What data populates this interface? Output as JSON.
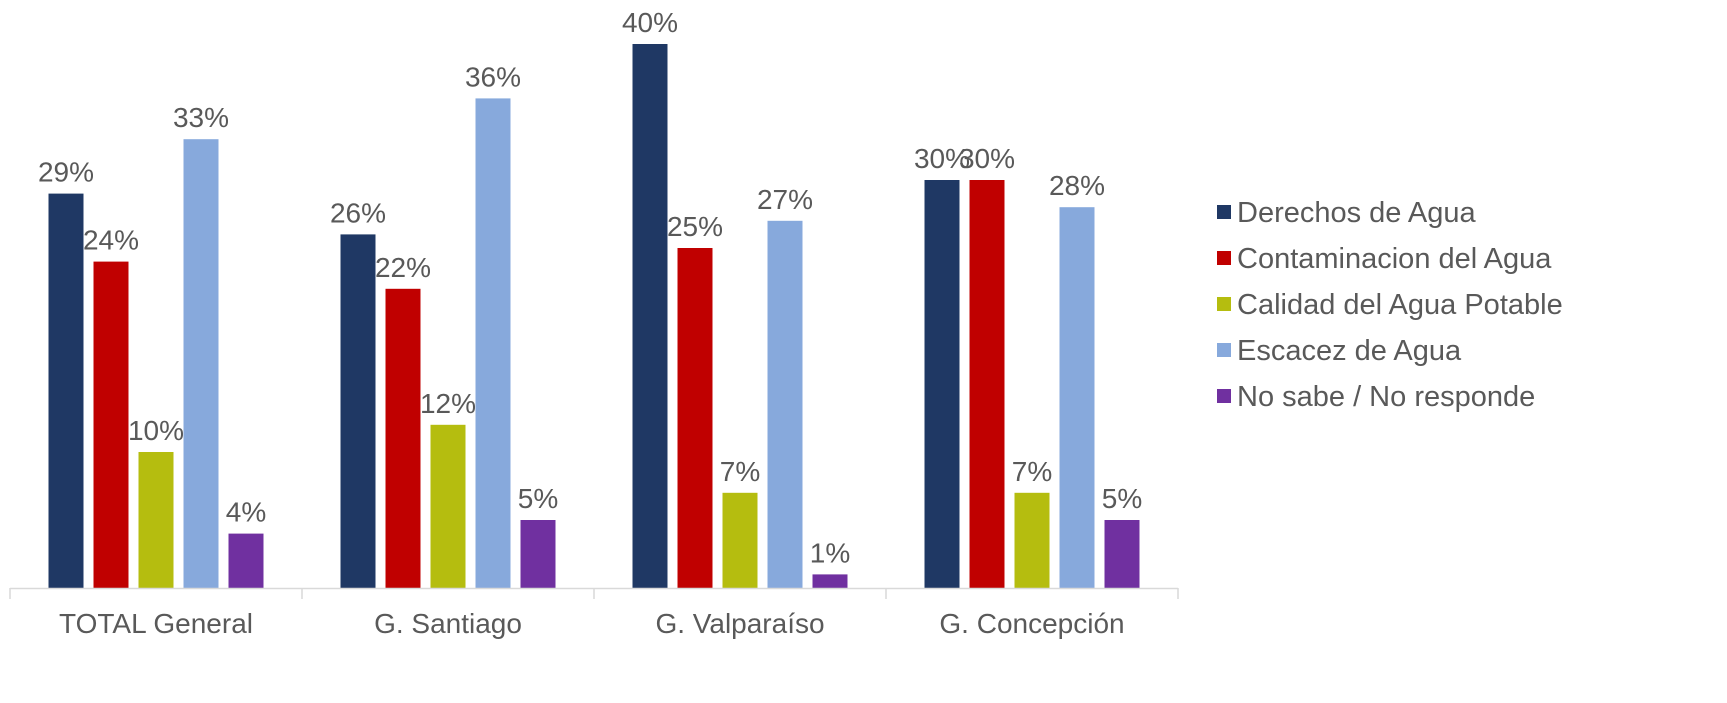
{
  "chart_data": {
    "type": "bar",
    "categories": [
      "TOTAL General",
      "G. Santiago",
      "G. Valparaíso",
      "G. Concepción"
    ],
    "series": [
      {
        "name": "Derechos de Agua",
        "color": "#1f3864",
        "values": [
          29,
          26,
          40,
          30
        ],
        "labels": [
          "29%",
          "26%",
          "40%",
          "30%"
        ]
      },
      {
        "name": "Contaminacion del Agua",
        "color": "#c00000",
        "values": [
          24,
          22,
          25,
          30
        ],
        "labels": [
          "24%",
          "22%",
          "25%",
          "30%"
        ]
      },
      {
        "name": "Calidad del Agua Potable",
        "color": "#b5bd0f",
        "values": [
          10,
          12,
          7,
          7
        ],
        "labels": [
          "10%",
          "12%",
          "7%",
          "7%"
        ]
      },
      {
        "name": "Escacez de Agua",
        "color": "#87a9dc",
        "values": [
          33,
          36,
          27,
          28
        ],
        "labels": [
          "33%",
          "36%",
          "27%",
          "28%"
        ]
      },
      {
        "name": "No sabe / No responde",
        "color": "#7030a0",
        "values": [
          4,
          5,
          1,
          5
        ],
        "labels": [
          "4%",
          "5%",
          "1%",
          "5%"
        ]
      }
    ],
    "value_unit": "%",
    "ylim": [
      0,
      40
    ],
    "grid": false,
    "legend_position": "right"
  }
}
